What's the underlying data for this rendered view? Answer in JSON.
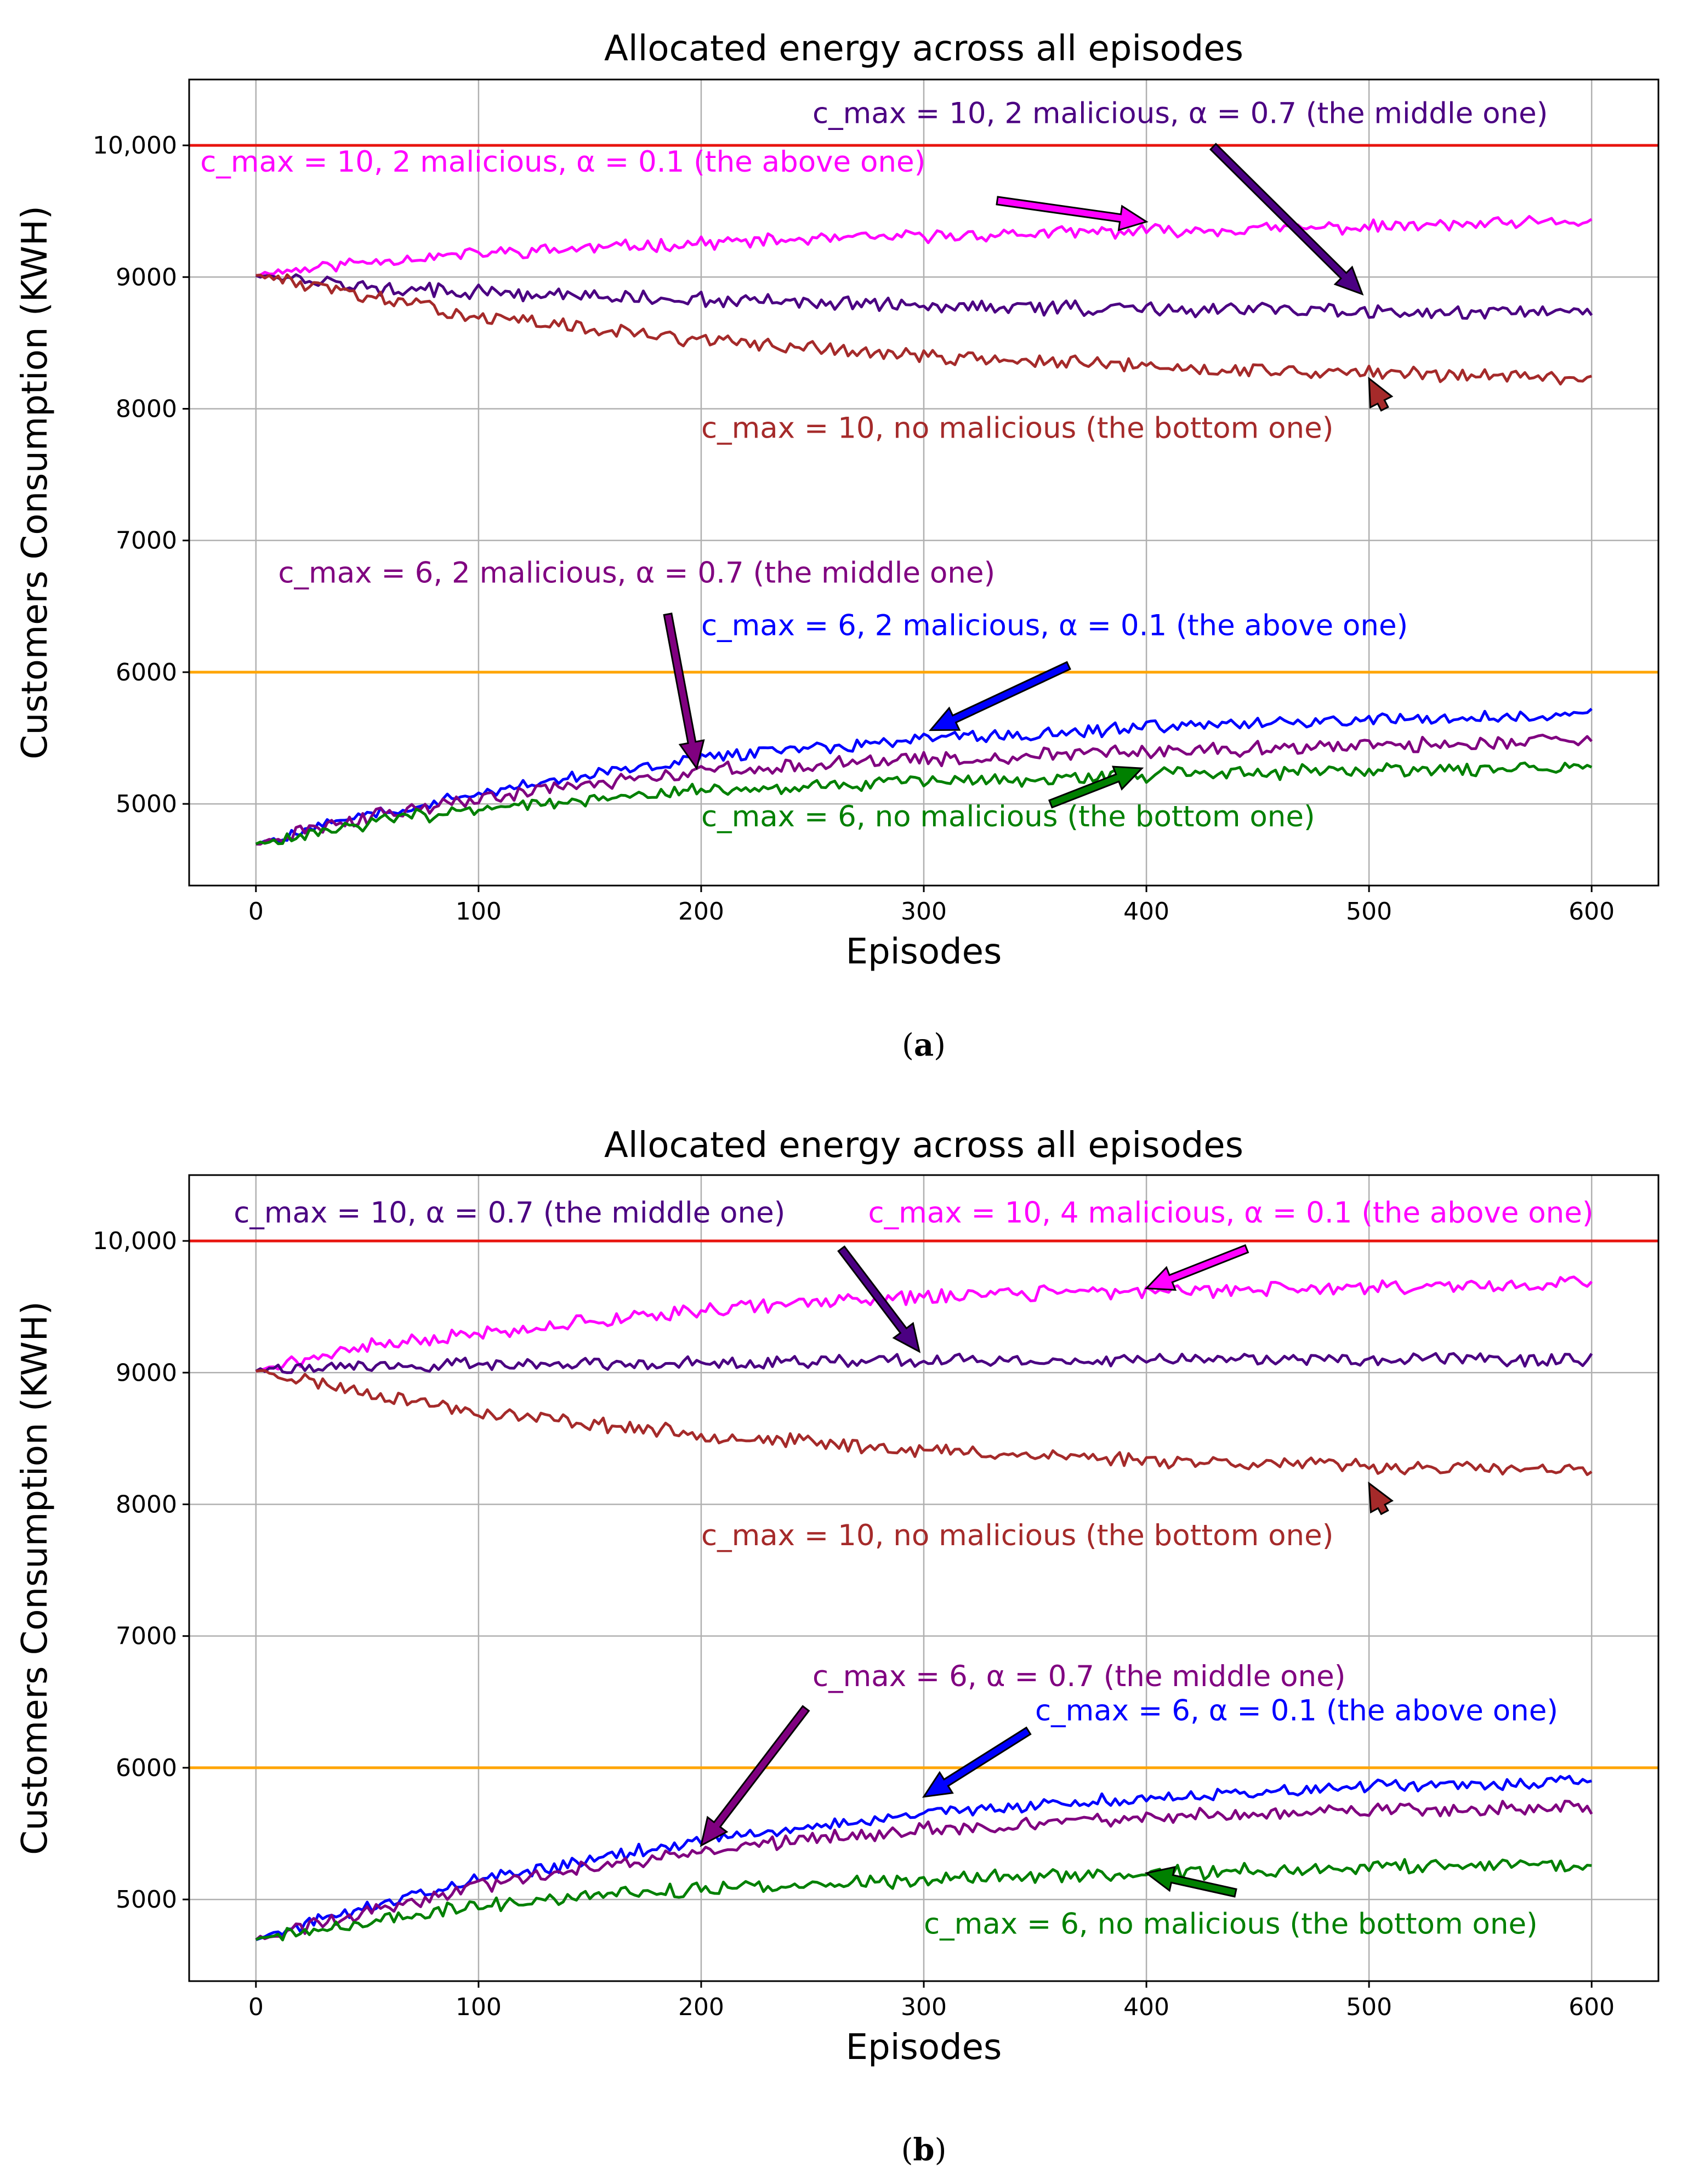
{
  "chart_data": [
    {
      "type": "line",
      "panel": "a",
      "caption": "a",
      "title": "Allocated energy across all episodes",
      "xlabel": "Episodes",
      "ylabel": "Customers Consumption (KWH)",
      "xlim": [
        -30,
        630
      ],
      "ylim": [
        4380,
        10500
      ],
      "xticks": [
        0,
        100,
        200,
        300,
        400,
        500,
        600
      ],
      "xtick_labels": [
        "0",
        "100",
        "200",
        "300",
        "400",
        "500",
        "600"
      ],
      "yticks": [
        5000,
        6000,
        7000,
        8000,
        9000,
        10000
      ],
      "ytick_labels": [
        "5000",
        "6000",
        "7000",
        "8000",
        "9000",
        "10,000"
      ],
      "grid": true,
      "reference_lines": [
        {
          "y": 10000,
          "color": "#e8140f"
        },
        {
          "y": 6000,
          "color": "#ffa500"
        }
      ],
      "series": [
        {
          "name": "c_max = 10, 2 malicious, α = 0.1",
          "color": "#ff00ff",
          "x": [
            0,
            50,
            100,
            200,
            300,
            400,
            500,
            600
          ],
          "values": [
            9020,
            9120,
            9180,
            9260,
            9310,
            9350,
            9380,
            9420
          ],
          "noise": 40,
          "seed": 11
        },
        {
          "name": "c_max = 10, 2 malicious, α = 0.7",
          "color": "#4b0082",
          "x": [
            0,
            50,
            100,
            200,
            300,
            400,
            500,
            600
          ],
          "values": [
            9020,
            8920,
            8880,
            8830,
            8780,
            8760,
            8740,
            8740
          ],
          "noise": 45,
          "seed": 12
        },
        {
          "name": "c_max = 10, no malicious",
          "color": "#a52a2a",
          "x": [
            0,
            50,
            100,
            200,
            300,
            400,
            500,
            600
          ],
          "values": [
            9020,
            8850,
            8700,
            8520,
            8400,
            8320,
            8270,
            8240
          ],
          "noise": 45,
          "seed": 13
        },
        {
          "name": "c_max = 6, 2 malicious, α = 0.1",
          "color": "#0000ff",
          "x": [
            0,
            50,
            100,
            200,
            300,
            400,
            500,
            600
          ],
          "values": [
            4700,
            4920,
            5080,
            5350,
            5490,
            5580,
            5640,
            5680
          ],
          "noise": 40,
          "seed": 14
        },
        {
          "name": "c_max = 6, 2 malicious, α = 0.7",
          "color": "#800080",
          "x": [
            0,
            50,
            100,
            200,
            300,
            400,
            500,
            600
          ],
          "values": [
            4700,
            4900,
            5040,
            5250,
            5340,
            5400,
            5440,
            5480
          ],
          "noise": 45,
          "seed": 15
        },
        {
          "name": "c_max = 6, no malicious",
          "color": "#008000",
          "x": [
            0,
            50,
            100,
            200,
            300,
            400,
            500,
            600
          ],
          "values": [
            4700,
            4850,
            4970,
            5110,
            5170,
            5220,
            5250,
            5280
          ],
          "noise": 45,
          "seed": 16
        }
      ],
      "annotations": [
        {
          "text": "c_max = 10, 2 malicious, α = 0.7 (the middle one)",
          "color": "#4b0082",
          "tx": 250,
          "ty": 10170,
          "ax": 430,
          "ay": 9990,
          "hx": 497,
          "hy": 8870
        },
        {
          "text": "c_max = 10, 2 malicious, α = 0.1 (the above one)",
          "color": "#ff00ff",
          "tx": -25,
          "ty": 9800,
          "ax": 333,
          "ay": 9580,
          "hx": 400,
          "hy": 9420
        },
        {
          "text": "c_max = 10, no malicious (the bottom one)",
          "color": "#a52a2a",
          "tx": 200,
          "ty": 7780,
          "ax": 507,
          "ay": 8000,
          "hx": 500,
          "hy": 8230
        },
        {
          "text": "c_max = 6, 2 malicious, α = 0.7 (the middle one)",
          "color": "#800080",
          "tx": 10,
          "ty": 6680,
          "ax": 185,
          "ay": 6440,
          "hx": 198,
          "hy": 5270
        },
        {
          "text": "c_max = 6, 2 malicious, α = 0.1 (the above one)",
          "color": "#0000ff",
          "tx": 200,
          "ty": 6280,
          "ax": 365,
          "ay": 6050,
          "hx": 303,
          "hy": 5560
        },
        {
          "text": "c_max = 6, no malicious (the bottom one)",
          "color": "#008000",
          "tx": 200,
          "ty": 4830,
          "ax": 357,
          "ay": 5000,
          "hx": 398,
          "hy": 5270
        }
      ]
    },
    {
      "type": "line",
      "panel": "b",
      "caption": "b",
      "title": "Allocated energy across all episodes",
      "xlabel": "Episodes",
      "ylabel": "Customers Consumption (KWH)",
      "xlim": [
        -30,
        630
      ],
      "ylim": [
        4380,
        10500
      ],
      "xticks": [
        0,
        100,
        200,
        300,
        400,
        500,
        600
      ],
      "xtick_labels": [
        "0",
        "100",
        "200",
        "300",
        "400",
        "500",
        "600"
      ],
      "yticks": [
        5000,
        6000,
        7000,
        8000,
        9000,
        10000
      ],
      "ytick_labels": [
        "5000",
        "6000",
        "7000",
        "8000",
        "9000",
        "10,000"
      ],
      "grid": true,
      "reference_lines": [
        {
          "y": 10000,
          "color": "#e8140f"
        },
        {
          "y": 6000,
          "color": "#ffa500"
        }
      ],
      "series": [
        {
          "name": "c_max = 10, 4 malicious, α = 0.1",
          "color": "#ff00ff",
          "x": [
            0,
            50,
            100,
            200,
            300,
            400,
            500,
            600
          ],
          "values": [
            9020,
            9200,
            9300,
            9480,
            9580,
            9620,
            9650,
            9680
          ],
          "noise": 45,
          "seed": 21
        },
        {
          "name": "c_max = 10, α = 0.7",
          "color": "#4b0082",
          "x": [
            0,
            50,
            100,
            200,
            300,
            400,
            500,
            600
          ],
          "values": [
            9020,
            9050,
            9060,
            9080,
            9090,
            9100,
            9100,
            9100
          ],
          "noise": 40,
          "seed": 22
        },
        {
          "name": "c_max = 10, no malicious",
          "color": "#a52a2a",
          "x": [
            0,
            50,
            100,
            200,
            300,
            400,
            500,
            600
          ],
          "values": [
            9020,
            8850,
            8700,
            8530,
            8410,
            8340,
            8290,
            8250
          ],
          "noise": 45,
          "seed": 23
        },
        {
          "name": "c_max = 6, α = 0.1",
          "color": "#0000ff",
          "x": [
            0,
            50,
            100,
            200,
            300,
            400,
            500,
            600
          ],
          "values": [
            4700,
            4950,
            5150,
            5450,
            5650,
            5780,
            5850,
            5900
          ],
          "noise": 40,
          "seed": 24
        },
        {
          "name": "c_max = 6, α = 0.7",
          "color": "#800080",
          "x": [
            0,
            50,
            100,
            200,
            300,
            400,
            500,
            600
          ],
          "values": [
            4700,
            4900,
            5100,
            5380,
            5530,
            5620,
            5670,
            5700
          ],
          "noise": 45,
          "seed": 25
        },
        {
          "name": "c_max = 6, no malicious",
          "color": "#008000",
          "x": [
            0,
            50,
            100,
            200,
            300,
            400,
            500,
            600
          ],
          "values": [
            4700,
            4830,
            4960,
            5080,
            5150,
            5200,
            5240,
            5270
          ],
          "noise": 45,
          "seed": 26
        }
      ],
      "annotations": [
        {
          "text": "c_max = 10, α = 0.7 (the middle one)",
          "color": "#4b0082",
          "tx": -10,
          "ty": 10140,
          "ax": 263,
          "ay": 9940,
          "hx": 298,
          "hy": 9160
        },
        {
          "text": "c_max = 10, 4 malicious, α = 0.1 (the above one)",
          "color": "#ff00ff",
          "tx": 275,
          "ty": 10140,
          "ax": 445,
          "ay": 9940,
          "hx": 400,
          "hy": 9640
        },
        {
          "text": "c_max = 10, no malicious (the bottom one)",
          "color": "#a52a2a",
          "tx": 200,
          "ty": 7690,
          "ax": 507,
          "ay": 7940,
          "hx": 500,
          "hy": 8160
        },
        {
          "text": "c_max = 6, α = 0.7 (the middle one)",
          "color": "#800080",
          "tx": 250,
          "ty": 6620,
          "ax": 247,
          "ay": 6450,
          "hx": 200,
          "hy": 5410
        },
        {
          "text": "c_max = 6, α = 0.1 (the above one)",
          "color": "#0000ff",
          "tx": 350,
          "ty": 6360,
          "ax": 347,
          "ay": 6280,
          "hx": 300,
          "hy": 5780
        },
        {
          "text": "c_max = 6, no malicious (the bottom one)",
          "color": "#008000",
          "tx": 300,
          "ty": 4740,
          "ax": 440,
          "ay": 5050,
          "hx": 400,
          "hy": 5200
        }
      ]
    }
  ]
}
